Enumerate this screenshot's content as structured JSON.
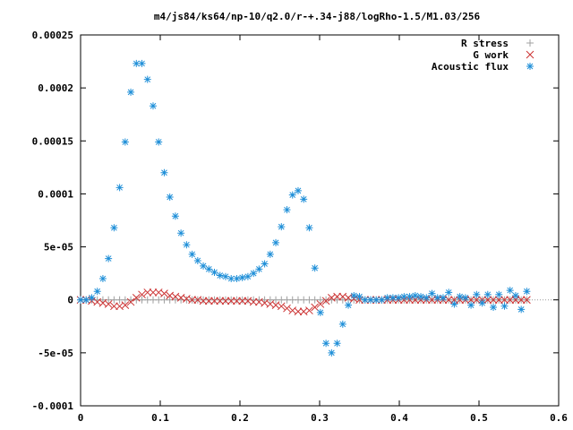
{
  "chart_data": {
    "type": "scatter",
    "title": "m4/js84/ks64/np-10/q2.0/r-+.34-j88/logRho-1.5/M1.03/256",
    "xlabel": "",
    "ylabel": "",
    "xlim": [
      0,
      0.6
    ],
    "ylim": [
      -0.0001,
      0.00025
    ],
    "xticks": [
      {
        "value": 0,
        "label": "0"
      },
      {
        "value": 0.1,
        "label": "0.1"
      },
      {
        "value": 0.2,
        "label": "0.2"
      },
      {
        "value": 0.3,
        "label": "0.3"
      },
      {
        "value": 0.4,
        "label": "0.4"
      },
      {
        "value": 0.5,
        "label": "0.5"
      },
      {
        "value": 0.6,
        "label": "0.6"
      }
    ],
    "yticks": [
      {
        "value": -0.0001,
        "label": "-0.0001"
      },
      {
        "value": -5e-05,
        "label": "-5e-05"
      },
      {
        "value": 0,
        "label": "0"
      },
      {
        "value": 5e-05,
        "label": "5e-05"
      },
      {
        "value": 0.0001,
        "label": "0.0001"
      },
      {
        "value": 0.00015,
        "label": "0.00015"
      },
      {
        "value": 0.0002,
        "label": "0.0002"
      },
      {
        "value": 0.00025,
        "label": "0.00025"
      }
    ],
    "grid": false,
    "legend_position": "top-right",
    "series": [
      {
        "name": "R stress",
        "marker": "plus",
        "color": "#a0a0a0",
        "x": [
          0.0,
          0.007,
          0.014,
          0.021,
          0.028,
          0.035,
          0.042,
          0.049,
          0.056,
          0.063,
          0.07,
          0.077,
          0.084,
          0.091,
          0.098,
          0.105,
          0.112,
          0.119,
          0.126,
          0.133,
          0.14,
          0.147,
          0.154,
          0.161,
          0.168,
          0.175,
          0.182,
          0.189,
          0.196,
          0.203,
          0.21,
          0.217,
          0.224,
          0.231,
          0.238,
          0.245,
          0.252,
          0.259,
          0.266,
          0.273,
          0.28,
          0.287,
          0.294,
          0.301,
          0.308,
          0.315,
          0.322,
          0.329,
          0.336,
          0.343,
          0.35,
          0.357,
          0.364,
          0.371,
          0.378,
          0.385,
          0.392,
          0.399,
          0.406,
          0.413,
          0.42,
          0.427,
          0.434,
          0.441,
          0.448,
          0.455,
          0.462,
          0.469,
          0.476,
          0.483,
          0.49,
          0.497,
          0.504,
          0.511,
          0.518,
          0.525,
          0.532,
          0.539,
          0.546,
          0.553,
          0.56
        ],
        "y": [
          0.0,
          0.0,
          0.0,
          0.0,
          0.0,
          0.0,
          0.0,
          0.0,
          0.0,
          0.0,
          0.0,
          0.0,
          0.0,
          0.0,
          0.0,
          0.0,
          0.0,
          0.0,
          0.0,
          0.0,
          0.0,
          0.0,
          0.0,
          0.0,
          0.0,
          0.0,
          0.0,
          0.0,
          0.0,
          0.0,
          0.0,
          0.0,
          0.0,
          0.0,
          0.0,
          0.0,
          0.0,
          0.0,
          0.0,
          0.0,
          0.0,
          0.0,
          0.0,
          0.0,
          0.0,
          0.0,
          0.0,
          0.0,
          0.0,
          0.0,
          0.0,
          0.0,
          0.0,
          0.0,
          0.0,
          0.0,
          0.0,
          0.0,
          0.0,
          0.0,
          0.0,
          0.0,
          0.0,
          0.0,
          0.0,
          0.0,
          0.0,
          0.0,
          0.0,
          0.0,
          0.0,
          0.0,
          0.0,
          0.0,
          0.0,
          0.0,
          0.0,
          0.0,
          0.0,
          0.0,
          0.0
        ]
      },
      {
        "name": "G work",
        "marker": "cross",
        "color": "#cc3333",
        "x": [
          0.0,
          0.007,
          0.014,
          0.021,
          0.028,
          0.035,
          0.042,
          0.049,
          0.056,
          0.063,
          0.07,
          0.077,
          0.084,
          0.091,
          0.098,
          0.105,
          0.112,
          0.119,
          0.126,
          0.133,
          0.14,
          0.147,
          0.154,
          0.161,
          0.168,
          0.175,
          0.182,
          0.189,
          0.196,
          0.203,
          0.21,
          0.217,
          0.224,
          0.231,
          0.238,
          0.245,
          0.252,
          0.259,
          0.266,
          0.273,
          0.28,
          0.287,
          0.294,
          0.301,
          0.308,
          0.315,
          0.322,
          0.329,
          0.336,
          0.343,
          0.35,
          0.357,
          0.364,
          0.371,
          0.378,
          0.385,
          0.392,
          0.399,
          0.406,
          0.413,
          0.42,
          0.427,
          0.434,
          0.441,
          0.448,
          0.455,
          0.462,
          0.469,
          0.476,
          0.483,
          0.49,
          0.497,
          0.504,
          0.511,
          0.518,
          0.525,
          0.532,
          0.539,
          0.546,
          0.553,
          0.56
        ],
        "y": [
          0.0,
          0.0,
          -1e-06,
          -2e-06,
          -3e-06,
          -4e-06,
          -6e-06,
          -6e-06,
          -5e-06,
          -2e-06,
          2e-06,
          5e-06,
          7e-06,
          7e-06,
          7e-06,
          6e-06,
          4e-06,
          3e-06,
          2e-06,
          1e-06,
          0.0,
          0.0,
          -1e-06,
          -1e-06,
          -1e-06,
          -1e-06,
          -1e-06,
          -1e-06,
          -1e-06,
          -1e-06,
          -1e-06,
          -2e-06,
          -2e-06,
          -3e-06,
          -4e-06,
          -5e-06,
          -6e-06,
          -8e-06,
          -1e-05,
          -1.1e-05,
          -1.1e-05,
          -1e-05,
          -7e-06,
          -4e-06,
          -1e-06,
          2e-06,
          3e-06,
          3e-06,
          2e-06,
          1e-06,
          0.0,
          0.0,
          0.0,
          0.0,
          0.0,
          0.0,
          0.0,
          0.0,
          0.0,
          0.0,
          0.0,
          0.0,
          0.0,
          0.0,
          0.0,
          0.0,
          0.0,
          0.0,
          0.0,
          0.0,
          0.0,
          0.0,
          0.0,
          0.0,
          0.0,
          0.0,
          0.0,
          0.0,
          0.0,
          0.0,
          0.0
        ]
      },
      {
        "name": "Acoustic flux",
        "marker": "star",
        "color": "#1f8fd8",
        "x": [
          0.0,
          0.007,
          0.014,
          0.021,
          0.028,
          0.035,
          0.042,
          0.049,
          0.056,
          0.063,
          0.07,
          0.077,
          0.084,
          0.091,
          0.098,
          0.105,
          0.112,
          0.119,
          0.126,
          0.133,
          0.14,
          0.147,
          0.154,
          0.161,
          0.168,
          0.175,
          0.182,
          0.189,
          0.196,
          0.203,
          0.21,
          0.217,
          0.224,
          0.231,
          0.238,
          0.245,
          0.252,
          0.259,
          0.266,
          0.273,
          0.28,
          0.287,
          0.294,
          0.301,
          0.308,
          0.315,
          0.322,
          0.329,
          0.336,
          0.343,
          0.35,
          0.357,
          0.364,
          0.371,
          0.378,
          0.385,
          0.392,
          0.399,
          0.406,
          0.413,
          0.42,
          0.427,
          0.434,
          0.441,
          0.448,
          0.455,
          0.462,
          0.469,
          0.476,
          0.483,
          0.49,
          0.497,
          0.504,
          0.511,
          0.518,
          0.525,
          0.532,
          0.539,
          0.546,
          0.553,
          0.56
        ],
        "y": [
          0.0,
          0.0,
          2e-06,
          8e-06,
          2e-05,
          3.9e-05,
          6.8e-05,
          0.000106,
          0.000149,
          0.000196,
          0.000223,
          0.000223,
          0.000208,
          0.000183,
          0.000149,
          0.00012,
          9.7e-05,
          7.9e-05,
          6.3e-05,
          5.2e-05,
          4.3e-05,
          3.7e-05,
          3.2e-05,
          2.9e-05,
          2.6e-05,
          2.3e-05,
          2.2e-05,
          2e-05,
          2e-05,
          2.1e-05,
          2.2e-05,
          2.5e-05,
          2.9e-05,
          3.4e-05,
          4.3e-05,
          5.4e-05,
          6.9e-05,
          8.5e-05,
          9.9e-05,
          0.000103,
          9.5e-05,
          6.8e-05,
          3e-05,
          -1.2e-05,
          -4.1e-05,
          -5e-05,
          -4.1e-05,
          -2.3e-05,
          -5e-06,
          4e-06,
          3e-06,
          0.0,
          0.0,
          0.0,
          0.0,
          2e-06,
          2e-06,
          2e-06,
          3e-06,
          3e-06,
          4e-06,
          3e-06,
          2e-06,
          6e-06,
          2e-06,
          2e-06,
          7e-06,
          -4e-06,
          3e-06,
          2e-06,
          -5e-06,
          5e-06,
          -3e-06,
          5e-06,
          -7e-06,
          5e-06,
          -6e-06,
          9e-06,
          4e-06,
          -9e-06,
          8e-06
        ]
      }
    ]
  }
}
